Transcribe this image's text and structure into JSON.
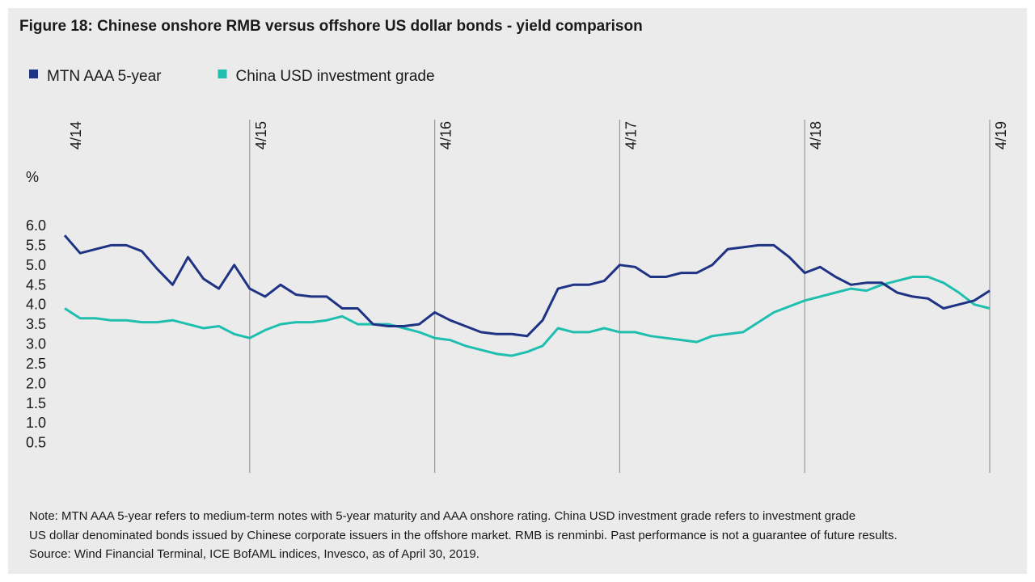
{
  "chart_data": {
    "type": "line",
    "title": "Figure 18: Chinese onshore RMB versus offshore US dollar bonds - yield comparison",
    "ylabel": "%",
    "x": [
      "4/14",
      "5/14",
      "6/14",
      "7/14",
      "8/14",
      "9/14",
      "10/14",
      "11/14",
      "12/14",
      "1/15",
      "2/15",
      "3/15",
      "4/15",
      "5/15",
      "6/15",
      "7/15",
      "8/15",
      "9/15",
      "10/15",
      "11/15",
      "12/15",
      "1/16",
      "2/16",
      "3/16",
      "4/16",
      "5/16",
      "6/16",
      "7/16",
      "8/16",
      "9/16",
      "10/16",
      "11/16",
      "12/16",
      "1/17",
      "2/17",
      "3/17",
      "4/17",
      "5/17",
      "6/17",
      "7/17",
      "8/17",
      "9/17",
      "10/17",
      "11/17",
      "12/17",
      "1/18",
      "2/18",
      "3/18",
      "4/18",
      "5/18",
      "6/18",
      "7/18",
      "8/18",
      "9/18",
      "10/18",
      "11/18",
      "12/18",
      "1/19",
      "2/19",
      "3/19",
      "4/19"
    ],
    "xticks": [
      "4/14",
      "4/15",
      "4/16",
      "4/17",
      "4/18",
      "4/19"
    ],
    "series": [
      {
        "name": "MTN AAA 5-year",
        "color": "#1f3384",
        "values": [
          5.75,
          5.3,
          5.4,
          5.5,
          5.5,
          5.35,
          4.9,
          4.5,
          5.2,
          4.65,
          4.4,
          5.0,
          4.4,
          4.2,
          4.5,
          4.25,
          4.2,
          4.2,
          3.9,
          3.9,
          3.5,
          3.45,
          3.45,
          3.5,
          3.8,
          3.6,
          3.45,
          3.3,
          3.25,
          3.25,
          3.2,
          3.6,
          4.4,
          4.5,
          4.5,
          4.6,
          5.0,
          4.95,
          4.7,
          4.7,
          4.8,
          4.8,
          5.0,
          5.4,
          5.45,
          5.5,
          5.5,
          5.2,
          4.8,
          4.95,
          4.7,
          4.5,
          4.55,
          4.55,
          4.3,
          4.2,
          4.15,
          3.9,
          4.0,
          4.1,
          4.35
        ]
      },
      {
        "name": "China USD investment grade",
        "color": "#1fbfb0",
        "values": [
          3.9,
          3.65,
          3.65,
          3.6,
          3.6,
          3.55,
          3.55,
          3.6,
          3.5,
          3.4,
          3.45,
          3.25,
          3.15,
          3.35,
          3.5,
          3.55,
          3.55,
          3.6,
          3.7,
          3.5,
          3.5,
          3.5,
          3.4,
          3.3,
          3.15,
          3.1,
          2.95,
          2.85,
          2.75,
          2.7,
          2.8,
          2.95,
          3.4,
          3.3,
          3.3,
          3.4,
          3.3,
          3.3,
          3.2,
          3.15,
          3.1,
          3.05,
          3.2,
          3.25,
          3.3,
          3.55,
          3.8,
          3.95,
          4.1,
          4.2,
          4.3,
          4.4,
          4.35,
          4.5,
          4.6,
          4.7,
          4.7,
          4.55,
          4.3,
          4.0,
          3.9
        ]
      }
    ],
    "ylim": [
      0,
      6
    ],
    "yticks": [
      {
        "value": 6,
        "label": "6.0"
      },
      5.5,
      {
        "value": 5,
        "label": "5.0"
      },
      4.5,
      {
        "value": 4,
        "label": "4.0"
      },
      3.5,
      {
        "value": 3,
        "label": "3.0"
      },
      2.5,
      {
        "value": 2,
        "label": "2.0"
      },
      1.5,
      {
        "value": 1,
        "label": "1.0"
      },
      0.5
    ],
    "vertical_grid": true,
    "notes": [
      "Note: MTN AAA 5-year refers to medium-term notes with 5-year maturity and AAA onshore rating. China USD investment grade refers to investment grade",
      "US dollar denominated bonds issued by Chinese corporate issuers in the offshore market. RMB is renminbi. Past performance is not a guarantee of future results.",
      "Source: Wind Financial Terminal, ICE BofAML indices, Invesco, as of April 30, 2019."
    ]
  }
}
